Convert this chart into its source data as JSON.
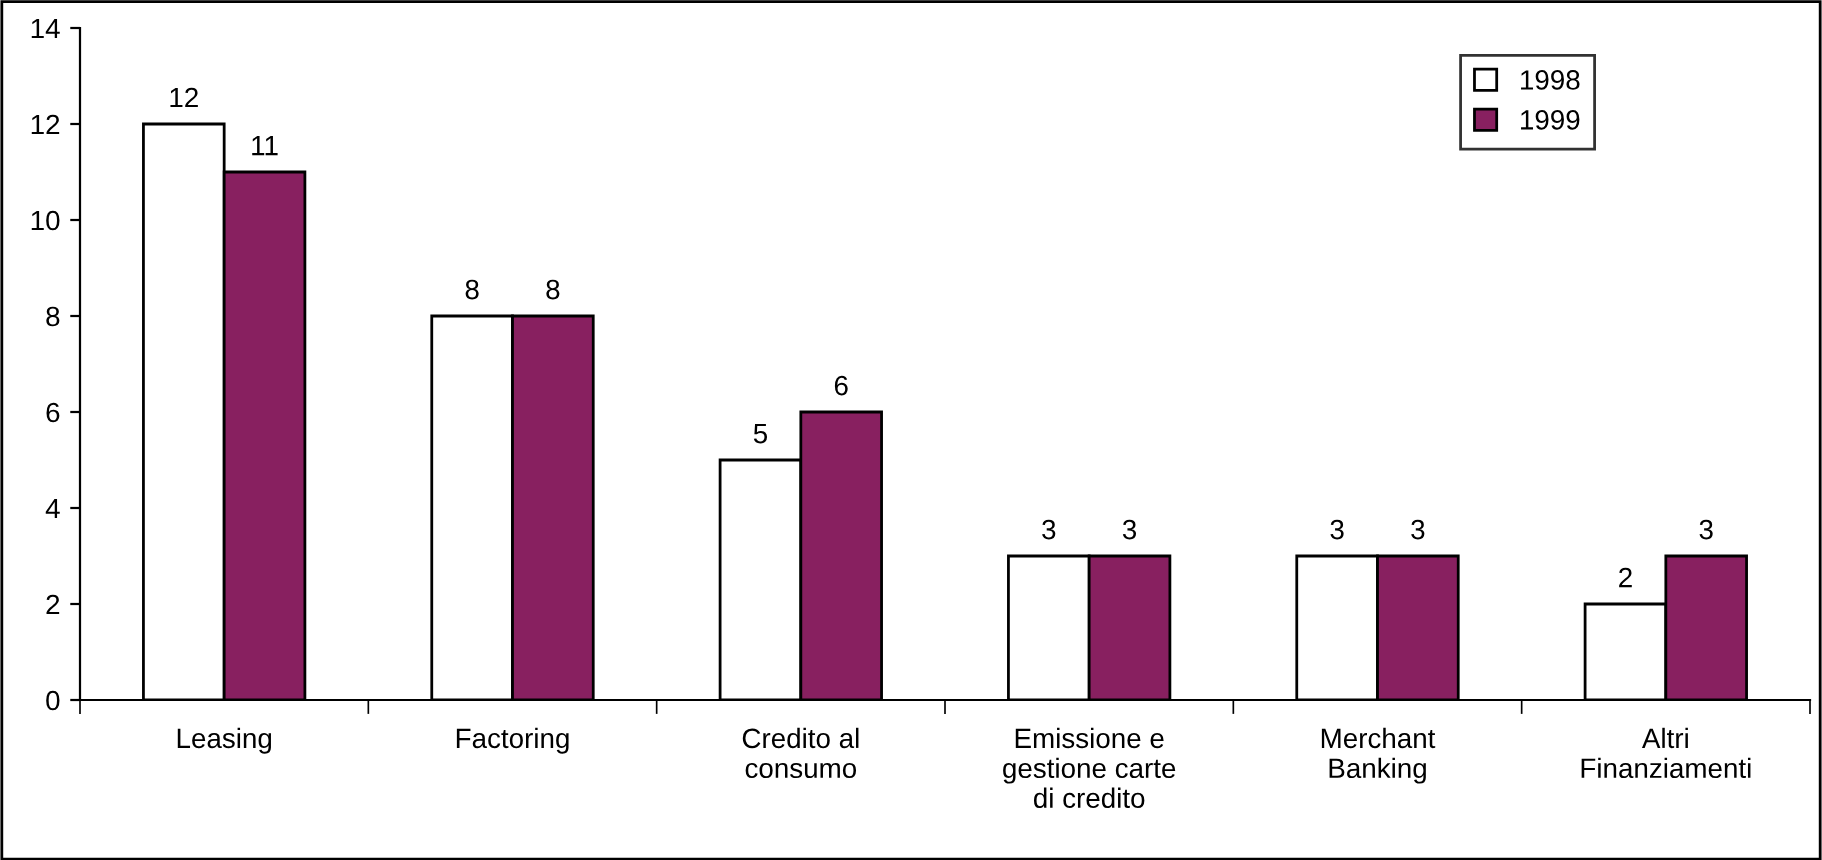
{
  "chart_data": {
    "type": "bar",
    "categories": [
      "Leasing",
      "Factoring",
      "Credito al\nconsumo",
      "Emissione e\ngestione carte\ndi credito",
      "Merchant\nBanking",
      "Altri\nFinanziamenti"
    ],
    "series": [
      {
        "name": "1998",
        "color": "#ffffff",
        "values": [
          12,
          8,
          5,
          3,
          3,
          2
        ]
      },
      {
        "name": "1999",
        "color": "#882060",
        "values": [
          11,
          8,
          6,
          3,
          3,
          3
        ]
      }
    ],
    "ylim": [
      0,
      14
    ],
    "yticks": [
      0,
      2,
      4,
      6,
      8,
      10,
      12,
      14
    ],
    "data_labels": true,
    "legend": "top right",
    "grid": false
  }
}
